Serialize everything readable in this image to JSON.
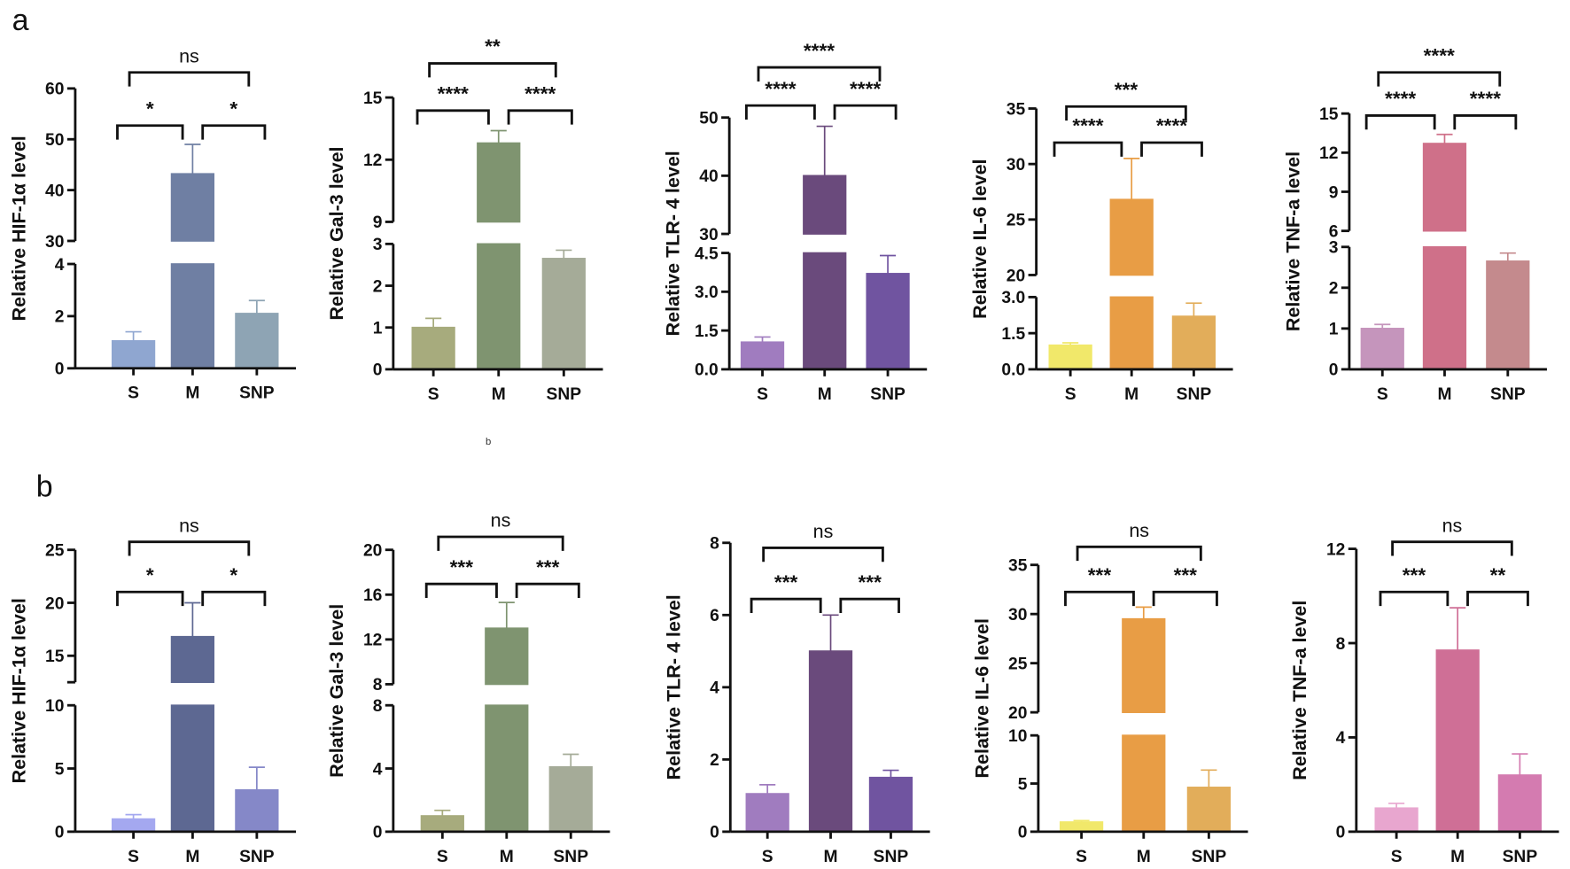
{
  "figure": {
    "label_a": "a",
    "label_b": "b",
    "stray_label": "b"
  },
  "chart_data": [
    {
      "panel": "a",
      "type": "bar",
      "ylabel": "Relative HIF-1α level",
      "categories": [
        "S",
        "M",
        "SNP"
      ],
      "values": [
        1.05,
        43.2,
        2.1
      ],
      "error_top": [
        1.4,
        49,
        2.6
      ],
      "colors": [
        "#8fa6d0",
        "#6f7fa3",
        "#8ea4b4"
      ],
      "axis_segments": [
        {
          "range": [
            0,
            4
          ],
          "ticks": [
            0,
            2,
            4
          ]
        },
        {
          "range": [
            30,
            60
          ],
          "ticks": [
            30,
            40,
            50,
            60
          ]
        }
      ],
      "significance": {
        "S_vs_M": "*",
        "M_vs_SNP": "*",
        "S_vs_SNP": "ns"
      }
    },
    {
      "panel": "a",
      "type": "bar",
      "ylabel": "Relative Gal-3 level",
      "categories": [
        "S",
        "M",
        "SNP"
      ],
      "values": [
        1.0,
        12.8,
        2.65
      ],
      "error_top": [
        1.22,
        13.4,
        2.85
      ],
      "colors": [
        "#a7ab7d",
        "#7f9470",
        "#a5ab98"
      ],
      "axis_segments": [
        {
          "range": [
            0,
            3
          ],
          "ticks": [
            0,
            1,
            2,
            3
          ]
        },
        {
          "range": [
            9,
            15
          ],
          "ticks": [
            9,
            12,
            15
          ]
        }
      ],
      "significance": {
        "S_vs_M": "****",
        "M_vs_SNP": "****",
        "S_vs_SNP": "**"
      }
    },
    {
      "panel": "a",
      "type": "bar",
      "ylabel": "Relative TLR- 4 level",
      "categories": [
        "S",
        "M",
        "SNP"
      ],
      "values": [
        1.05,
        40,
        3.7
      ],
      "error_top": [
        1.25,
        48.5,
        4.4
      ],
      "colors": [
        "#a07cbf",
        "#6a4a7c",
        "#7054a0"
      ],
      "axis_segments": [
        {
          "range": [
            0,
            4.5
          ],
          "ticks": [
            "0.0",
            "1.5",
            "3.0",
            "4.5"
          ]
        },
        {
          "range": [
            30,
            50
          ],
          "ticks": [
            30,
            40,
            50
          ]
        }
      ],
      "significance": {
        "S_vs_M": "****",
        "M_vs_SNP": "****",
        "S_vs_SNP": "****"
      }
    },
    {
      "panel": "a",
      "type": "bar",
      "ylabel": "Relative IL-6 level",
      "categories": [
        "S",
        "M",
        "SNP"
      ],
      "values": [
        1.0,
        26.8,
        2.2
      ],
      "error_top": [
        1.1,
        30.5,
        2.75
      ],
      "colors": [
        "#f1e86a",
        "#e89d45",
        "#e2ad5a"
      ],
      "axis_segments": [
        {
          "range": [
            0,
            3
          ],
          "ticks": [
            "0.0",
            "1.5",
            "3.0"
          ]
        },
        {
          "range": [
            20,
            35
          ],
          "ticks": [
            20,
            25,
            30,
            35
          ]
        }
      ],
      "significance": {
        "S_vs_M": "****",
        "M_vs_SNP": "****",
        "S_vs_SNP": "***"
      }
    },
    {
      "panel": "a",
      "type": "bar",
      "ylabel": "Relative TNF-a level",
      "categories": [
        "S",
        "M",
        "SNP"
      ],
      "values": [
        1.0,
        12.7,
        2.65
      ],
      "error_top": [
        1.1,
        13.4,
        2.85
      ],
      "colors": [
        "#c595bc",
        "#cf7089",
        "#c48a8d"
      ],
      "axis_segments": [
        {
          "range": [
            0,
            3
          ],
          "ticks": [
            0,
            1,
            2,
            3
          ]
        },
        {
          "range": [
            6,
            15
          ],
          "ticks": [
            6,
            9,
            12,
            15
          ]
        }
      ],
      "significance": {
        "S_vs_M": "****",
        "M_vs_SNP": "****",
        "S_vs_SNP": "****"
      }
    },
    {
      "panel": "b",
      "type": "bar",
      "ylabel": "Relative HIF-1α level",
      "categories": [
        "S",
        "M",
        "SNP"
      ],
      "values": [
        1.0,
        16.8,
        3.3
      ],
      "error_top": [
        1.35,
        20,
        5.1
      ],
      "colors": [
        "#a4a8f0",
        "#5d6892",
        "#8588c8"
      ],
      "axis_segments": [
        {
          "range": [
            0,
            10
          ],
          "ticks": [
            0,
            5,
            10
          ]
        },
        {
          "range": [
            12.5,
            25
          ],
          "ticks": [
            15,
            20,
            25
          ]
        }
      ],
      "significance": {
        "S_vs_M": "*",
        "M_vs_SNP": "*",
        "S_vs_SNP": "ns"
      }
    },
    {
      "panel": "b",
      "type": "bar",
      "ylabel": "Relative Gal-3 level",
      "categories": [
        "S",
        "M",
        "SNP"
      ],
      "values": [
        1.0,
        13,
        4.1
      ],
      "error_top": [
        1.35,
        15.3,
        4.9
      ],
      "colors": [
        "#a7ab7d",
        "#7f9470",
        "#a5ab98"
      ],
      "axis_segments": [
        {
          "range": [
            0,
            8
          ],
          "ticks": [
            0,
            4,
            8
          ]
        },
        {
          "range": [
            8,
            20
          ],
          "ticks": [
            8,
            12,
            16,
            20
          ]
        }
      ],
      "significance": {
        "S_vs_M": "***",
        "M_vs_SNP": "***",
        "S_vs_SNP": "ns"
      }
    },
    {
      "panel": "b",
      "type": "bar",
      "ylabel": "Relative TLR- 4 level",
      "categories": [
        "S",
        "M",
        "SNP"
      ],
      "values": [
        1.05,
        5.0,
        1.5
      ],
      "error_top": [
        1.3,
        6.0,
        1.7
      ],
      "colors": [
        "#a07cbf",
        "#6a4a7c",
        "#7054a0"
      ],
      "axis_segments": [
        {
          "range": [
            0,
            8
          ],
          "ticks": [
            0,
            2,
            4,
            6,
            8
          ]
        }
      ],
      "significance": {
        "S_vs_M": "***",
        "M_vs_SNP": "***",
        "S_vs_SNP": "ns"
      }
    },
    {
      "panel": "b",
      "type": "bar",
      "ylabel": "Relative IL-6 level",
      "categories": [
        "S",
        "M",
        "SNP"
      ],
      "values": [
        1.0,
        29.5,
        4.6
      ],
      "error_top": [
        1.15,
        30.7,
        6.4
      ],
      "colors": [
        "#f1e86a",
        "#e89d45",
        "#e2ad5a"
      ],
      "axis_segments": [
        {
          "range": [
            0,
            10
          ],
          "ticks": [
            0,
            5,
            10
          ]
        },
        {
          "range": [
            20,
            35
          ],
          "ticks": [
            20,
            25,
            30,
            35
          ]
        }
      ],
      "significance": {
        "S_vs_M": "***",
        "M_vs_SNP": "***",
        "S_vs_SNP": "ns"
      }
    },
    {
      "panel": "b",
      "type": "bar",
      "ylabel": "Relative TNF-a level",
      "categories": [
        "S",
        "M",
        "SNP"
      ],
      "values": [
        1.0,
        7.7,
        2.4
      ],
      "error_top": [
        1.2,
        9.5,
        3.3
      ],
      "colors": [
        "#e8a6cf",
        "#cf6f96",
        "#d47bb0"
      ],
      "axis_segments": [
        {
          "range": [
            0,
            12
          ],
          "ticks": [
            0,
            4,
            8,
            12
          ]
        }
      ],
      "significance": {
        "S_vs_M": "***",
        "M_vs_SNP": "**",
        "S_vs_SNP": "ns"
      }
    }
  ]
}
